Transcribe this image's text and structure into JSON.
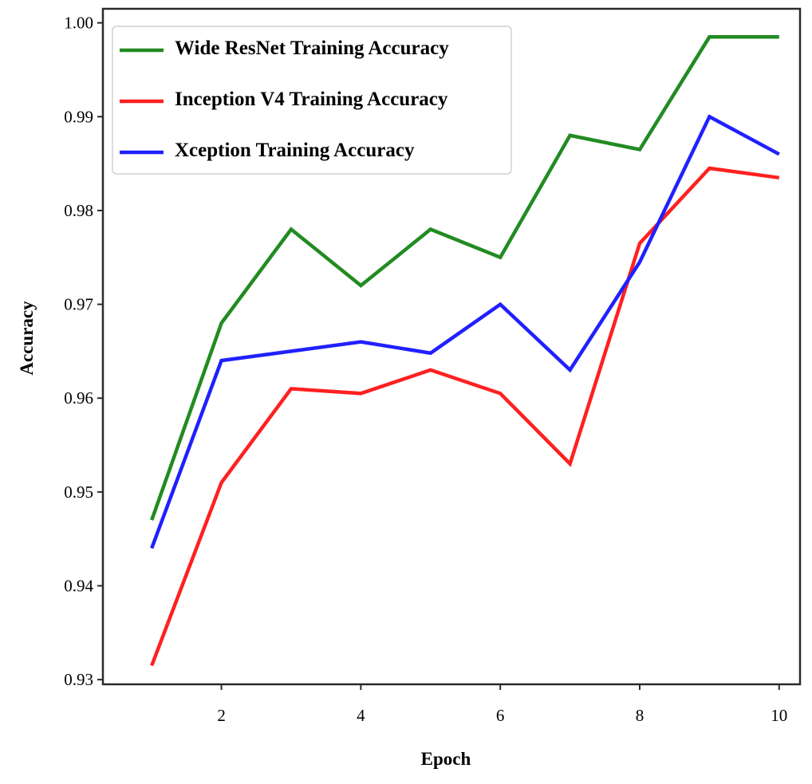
{
  "chart_data": {
    "type": "line",
    "title": "",
    "xlabel": "Epoch",
    "ylabel": "Accuracy",
    "x": [
      1,
      2,
      3,
      4,
      5,
      6,
      7,
      8,
      9,
      10
    ],
    "xlim": [
      0.3,
      10.3
    ],
    "ylim": [
      0.9295,
      1.0015
    ],
    "xticks": [
      2,
      4,
      6,
      8,
      10
    ],
    "xtick_labels": [
      "2",
      "4",
      "6",
      "8",
      "10"
    ],
    "yticks": [
      0.93,
      0.94,
      0.95,
      0.96,
      0.97,
      0.98,
      0.99,
      1.0
    ],
    "ytick_labels": [
      "0.93",
      "0.94",
      "0.95",
      "0.96",
      "0.97",
      "0.98",
      "0.99",
      "1.00"
    ],
    "grid": false,
    "legend_position": "top-left",
    "series": [
      {
        "name": "Wide ResNet Training Accuracy",
        "color": "#228b22",
        "values": [
          0.947,
          0.968,
          0.978,
          0.972,
          0.978,
          0.975,
          0.988,
          0.9865,
          0.9985,
          0.9985
        ]
      },
      {
        "name": "Inception V4 Training Accuracy",
        "color": "#ff2020",
        "values": [
          0.9315,
          0.951,
          0.961,
          0.9605,
          0.963,
          0.9605,
          0.953,
          0.9765,
          0.9845,
          0.9835
        ]
      },
      {
        "name": "Xception Training Accuracy",
        "color": "#2020ff",
        "values": [
          0.944,
          0.964,
          0.965,
          0.966,
          0.9648,
          0.97,
          0.963,
          0.9745,
          0.99,
          0.986
        ]
      }
    ]
  }
}
